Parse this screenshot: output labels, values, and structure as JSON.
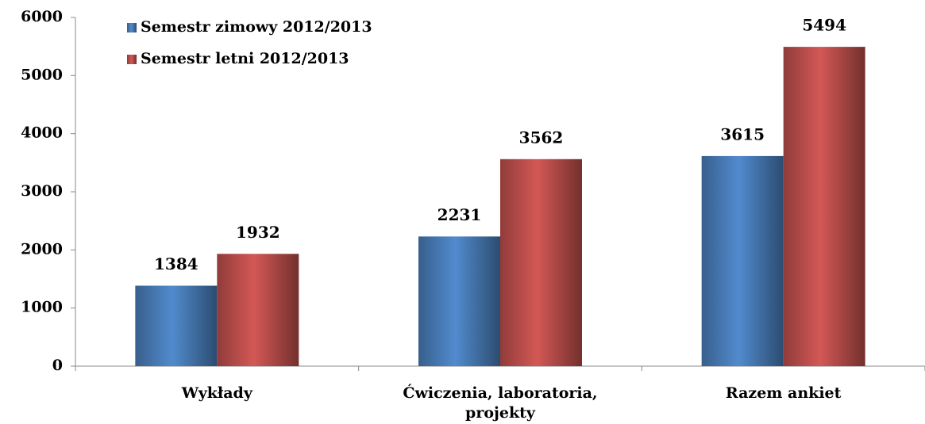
{
  "chart_data": {
    "type": "bar",
    "categories": [
      "Wykłady",
      "Ćwiczenia, laboratoria, projekty",
      "Razem ankiet"
    ],
    "series": [
      {
        "name": "Semestr zimowy 2012/2013",
        "color": "#4a7ebb",
        "values": [
          1384,
          2231,
          3615
        ]
      },
      {
        "name": "Semestr letni 2012/2013",
        "color": "#c0504d",
        "values": [
          1932,
          3562,
          5494
        ]
      }
    ],
    "ylim": [
      0,
      6000
    ],
    "yticks": [
      0,
      1000,
      2000,
      3000,
      4000,
      5000,
      6000
    ],
    "grid": false,
    "legend": "top-left"
  }
}
